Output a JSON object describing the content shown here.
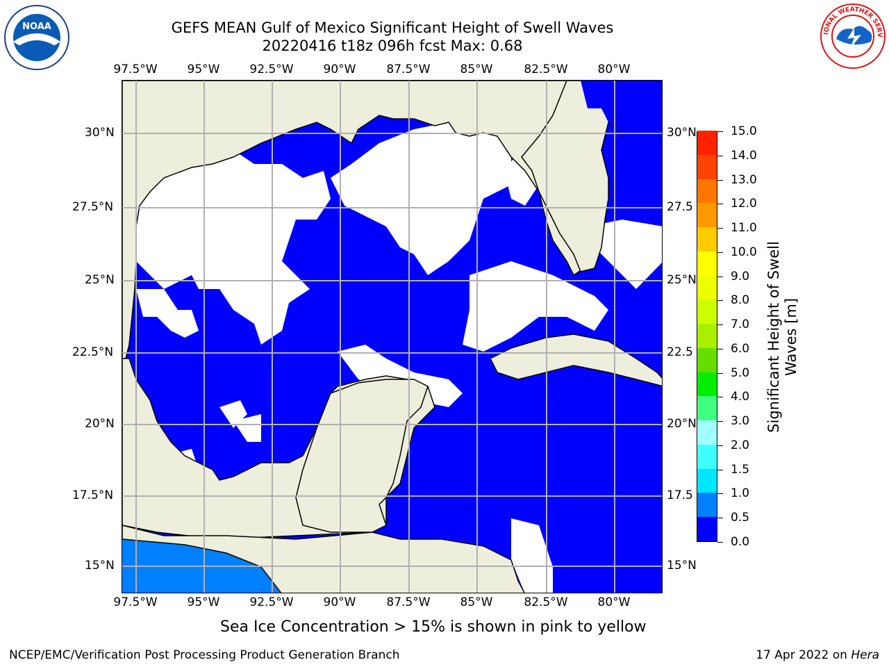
{
  "title": "GEFS MEAN Gulf of Mexico Significant Height of Swell Waves",
  "subtitle": "20220416 t18z 096h fcst   Max: 0.68",
  "map": {
    "lon_labels": [
      "97.5°W",
      "95°W",
      "92.5°W",
      "90°W",
      "87.5°W",
      "85°W",
      "82.5°W",
      "80°W"
    ],
    "lat_labels": [
      "30°N",
      "27.5°N",
      "25°N",
      "22.5°N",
      "20°N",
      "17.5°N",
      "15°N"
    ],
    "lat_labels_right": [
      "30°N",
      "27.5",
      "25°N",
      "22.5",
      "20°N",
      "17.5",
      "15°N"
    ],
    "colors": {
      "land": "#eeeedc",
      "swell_low": "#0000ff",
      "swell_0_5": "#0080ff",
      "no_data": "#ffffff",
      "grid": "#b0b0b0"
    }
  },
  "colorbar": {
    "label": "Significant Height of Swell Waves [m]",
    "ticks": [
      "0.0",
      "0.5",
      "1.0",
      "1.5",
      "2.0",
      "3.0",
      "4.0",
      "5.0",
      "6.0",
      "7.0",
      "8.0",
      "9.0",
      "10.0",
      "11.0",
      "12.0",
      "13.0",
      "14.0",
      "15.0"
    ],
    "colors": [
      "#0000ff",
      "#0080ff",
      "#00e6ff",
      "#40ffff",
      "#a0ffff",
      "#40ff80",
      "#00ee00",
      "#66dd00",
      "#aaee00",
      "#ccff00",
      "#eeff00",
      "#ffff00",
      "#ffcc00",
      "#ff9900",
      "#ff7700",
      "#ff4400",
      "#ff2200"
    ]
  },
  "note": "Sea Ice Concentration > 15% is shown in pink to yellow",
  "footer": {
    "left": "NCEP/EMC/Verification Post Processing Product Generation Branch",
    "right_prefix": "17 Apr 2022 on ",
    "right_machine": "Hera"
  },
  "logos": {
    "left": "noaa-logo",
    "left_text": "NOAA",
    "right": "nws-logo",
    "right_text": "NATIONAL WEATHER SERVICE"
  }
}
